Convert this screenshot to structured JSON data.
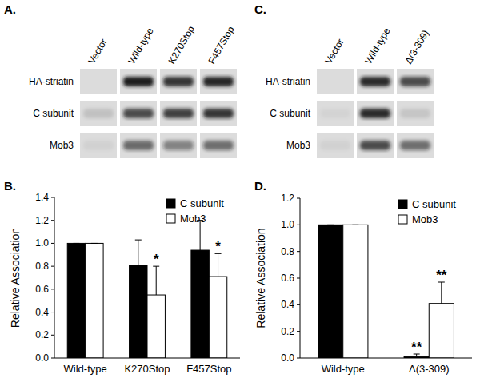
{
  "blots": [
    {
      "panel": "A.",
      "lanes": [
        "Vector",
        "Wild-type",
        "K270Stop",
        "F457Stop"
      ],
      "rows": [
        "HA-striatin",
        "C subunit",
        "Mob3"
      ],
      "bands": [
        [
          0,
          1,
          0.85,
          0.95
        ],
        [
          0.12,
          0.75,
          0.8,
          0.85
        ],
        [
          0.05,
          0.6,
          0.45,
          0.55
        ]
      ]
    },
    {
      "panel": "C.",
      "lanes": [
        "Vector",
        "Wild-type",
        "Δ(3-309)"
      ],
      "rows": [
        "HA-striatin",
        "C subunit",
        "Mob3"
      ],
      "bands": [
        [
          0,
          0.9,
          0.75
        ],
        [
          0.04,
          0.9,
          0.1
        ],
        [
          0.05,
          0.75,
          0.55
        ]
      ]
    }
  ],
  "chart_data": [
    {
      "type": "bar",
      "title": "B.",
      "ylabel": "Relative Association",
      "categories": [
        "Wild-type",
        "K270Stop",
        "F457Stop"
      ],
      "series": [
        {
          "name": "C subunit",
          "color": "#000000",
          "values": [
            1.0,
            0.81,
            0.94
          ],
          "errors": [
            0,
            0.22,
            0.26
          ]
        },
        {
          "name": "Mob3",
          "color": "#ffffff",
          "values": [
            1.0,
            0.55,
            0.71
          ],
          "errors": [
            0,
            0.25,
            0.2
          ],
          "significance": [
            null,
            "*",
            "*"
          ]
        }
      ],
      "ylim": [
        0,
        1.4
      ],
      "yticks": [
        {
          "value": 0,
          "label": "0.0"
        },
        0.2,
        0.4,
        0.6,
        0.8,
        {
          "value": 1,
          "label": "1.0"
        },
        1.2,
        1.4
      ],
      "legend": "top-right"
    },
    {
      "type": "bar",
      "title": "D.",
      "ylabel": "Relative Association",
      "categories": [
        "Wild-type",
        "Δ(3-309)"
      ],
      "series": [
        {
          "name": "C subunit",
          "color": "#000000",
          "values": [
            1.0,
            0.01
          ],
          "errors": [
            0,
            0.02
          ],
          "significance": [
            null,
            "**"
          ]
        },
        {
          "name": "Mob3",
          "color": "#ffffff",
          "values": [
            1.0,
            0.41
          ],
          "errors": [
            0,
            0.16
          ],
          "significance": [
            null,
            "**"
          ]
        }
      ],
      "ylim": [
        0,
        1.2
      ],
      "yticks": [
        {
          "value": 0,
          "label": "0.0"
        },
        0.2,
        0.4,
        0.6,
        0.8,
        {
          "value": 1,
          "label": "1.0"
        },
        1.2
      ],
      "legend": "top-right"
    }
  ]
}
